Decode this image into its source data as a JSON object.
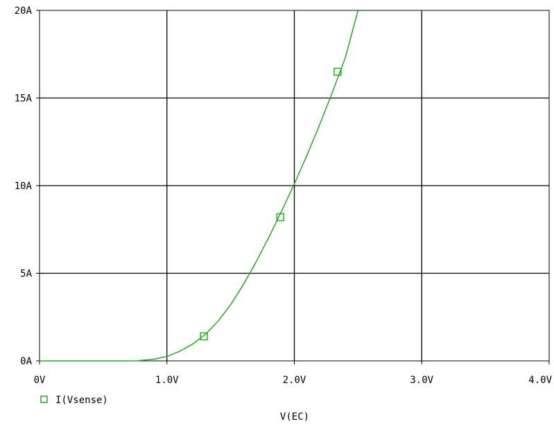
{
  "chart_data": {
    "type": "line",
    "xlabel": "V(EC)",
    "ylabel": "",
    "xlim": [
      0,
      4
    ],
    "ylim": [
      0,
      20
    ],
    "grid": true,
    "x_ticks": [
      {
        "value": 0,
        "label": "0V"
      },
      {
        "value": 1,
        "label": "1.0V"
      },
      {
        "value": 2,
        "label": "2.0V"
      },
      {
        "value": 3,
        "label": "3.0V"
      },
      {
        "value": 4,
        "label": "4.0V"
      }
    ],
    "y_ticks": [
      {
        "value": 0,
        "label": "0A"
      },
      {
        "value": 5,
        "label": "5A"
      },
      {
        "value": 10,
        "label": "10A"
      },
      {
        "value": 15,
        "label": "15A"
      },
      {
        "value": 20,
        "label": "20A"
      }
    ],
    "legend_position": "bottom-left",
    "series": [
      {
        "name": "I(Vsense)",
        "color": "#22aa22",
        "marker": "square",
        "x": [
          0,
          0.5,
          0.75,
          0.8,
          0.9,
          1.0,
          1.1,
          1.2,
          1.3,
          1.4,
          1.5,
          1.6,
          1.7,
          1.8,
          1.9,
          2.0,
          2.1,
          2.2,
          2.3,
          2.4,
          2.5
        ],
        "y": [
          0,
          0,
          0,
          0.03,
          0.1,
          0.25,
          0.55,
          0.95,
          1.5,
          2.25,
          3.2,
          4.35,
          5.65,
          7.05,
          8.55,
          10.1,
          11.75,
          13.5,
          15.35,
          17.3,
          20.0
        ],
        "marker_x": [
          1.29,
          1.89,
          2.34
        ],
        "marker_y": [
          1.4,
          8.2,
          16.5
        ]
      }
    ]
  }
}
